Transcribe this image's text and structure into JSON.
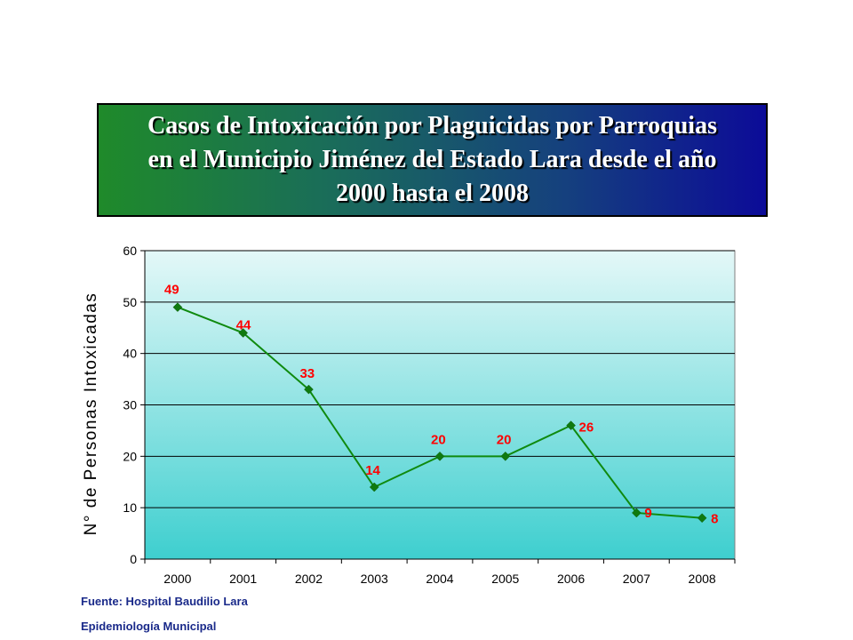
{
  "title": {
    "lines": [
      "Casos de Intoxicación por Plaguicidas por Parroquias",
      "en el Municipio Jiménez del Estado Lara desde el año",
      "2000 hasta el 2008"
    ]
  },
  "footer": {
    "source": "Fuente: Hospital Baudilio Lara",
    "department": "Epidemiología Municipal"
  },
  "colors": {
    "line": "#0f8a0f",
    "marker": "#0f7a0f",
    "data_label": "#ff0000",
    "plot_top": "#e4f8f8",
    "plot_bottom": "#3ecfcf",
    "grid": "#000000"
  },
  "chart_data": {
    "type": "line",
    "categories": [
      "2000",
      "2001",
      "2002",
      "2003",
      "2004",
      "2005",
      "2006",
      "2007",
      "2008"
    ],
    "values": [
      49,
      44,
      33,
      14,
      20,
      20,
      26,
      9,
      8
    ],
    "data_labels": [
      "49",
      "44",
      "33",
      "14",
      "20",
      "20",
      "26",
      "9",
      "8"
    ],
    "ylabel": "N° de Personas Intoxicadas",
    "xlabel": "",
    "ylim": [
      0,
      60
    ],
    "yticks": [
      0,
      10,
      20,
      30,
      40,
      50,
      60
    ],
    "ytick_labels": [
      "0",
      "10",
      "20",
      "30",
      "40",
      "50",
      "60"
    ],
    "grid": "horizontal",
    "legend": "none"
  }
}
